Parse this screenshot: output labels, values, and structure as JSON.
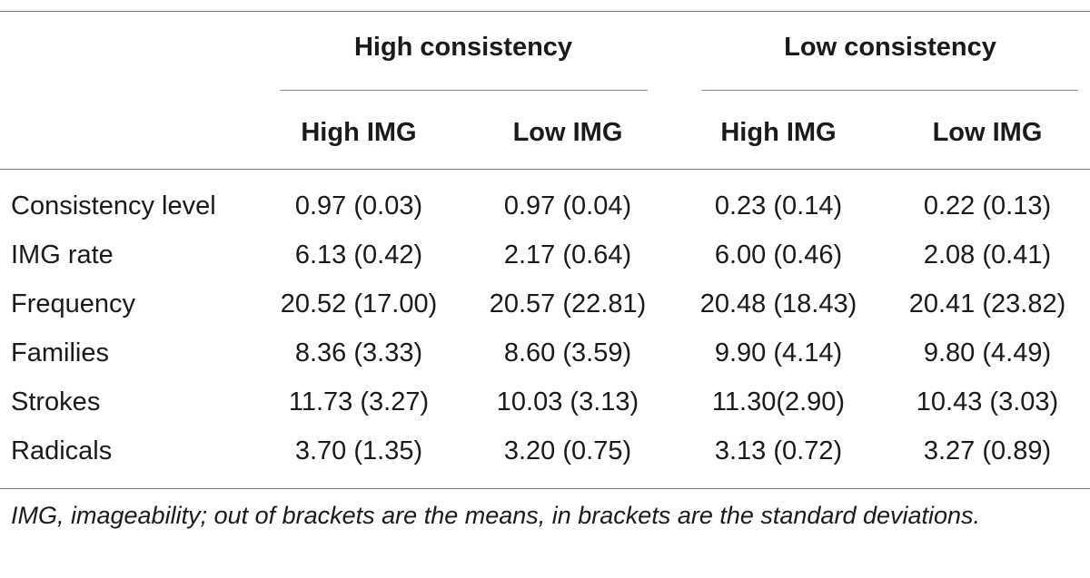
{
  "table": {
    "group_headers": [
      "High consistency",
      "Low consistency"
    ],
    "column_headers": [
      "High IMG",
      "Low IMG",
      "High IMG",
      "Low IMG"
    ],
    "rows": [
      {
        "label": "Consistency level",
        "values": [
          "0.97 (0.03)",
          "0.97 (0.04)",
          "0.23 (0.14)",
          "0.22 (0.13)"
        ]
      },
      {
        "label": "IMG rate",
        "values": [
          "6.13 (0.42)",
          "2.17 (0.64)",
          "6.00 (0.46)",
          "2.08 (0.41)"
        ]
      },
      {
        "label": "Frequency",
        "values": [
          "20.52 (17.00)",
          "20.57 (22.81)",
          "20.48 (18.43)",
          "20.41 (23.82)"
        ]
      },
      {
        "label": "Families",
        "values": [
          "8.36 (3.33)",
          "8.60 (3.59)",
          "9.90 (4.14)",
          "9.80 (4.49)"
        ]
      },
      {
        "label": "Strokes",
        "values": [
          "11.73 (3.27)",
          "10.03 (3.13)",
          "11.30(2.90)",
          "10.43 (3.03)"
        ]
      },
      {
        "label": "Radicals",
        "values": [
          "3.70 (1.35)",
          "3.20 (0.75)",
          "3.13 (0.72)",
          "3.27 (0.89)"
        ]
      }
    ],
    "footnote": "IMG, imageability; out of brackets are the means, in brackets are the standard deviations."
  }
}
